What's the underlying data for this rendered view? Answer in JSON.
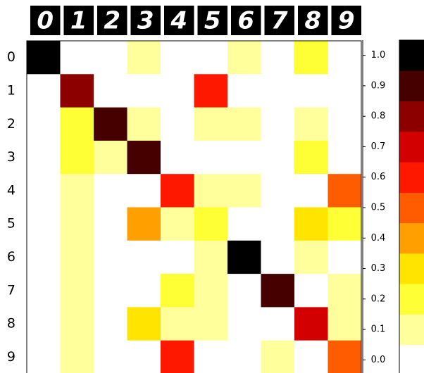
{
  "chart_data": {
    "type": "heatmap",
    "colormap": "hot_r",
    "x": [
      "0",
      "1",
      "2",
      "3",
      "4",
      "5",
      "6",
      "7",
      "8",
      "9"
    ],
    "y": [
      "0",
      "1",
      "2",
      "3",
      "4",
      "5",
      "6",
      "7",
      "8",
      "9"
    ],
    "values": [
      [
        1.0,
        0,
        0,
        0.05,
        0,
        0,
        0.05,
        0,
        0.15,
        0.02
      ],
      [
        0,
        0.75,
        0,
        0,
        0,
        0.6,
        0,
        0,
        0,
        0
      ],
      [
        0.03,
        0.15,
        0.85,
        0.05,
        0.03,
        0.1,
        0.08,
        0.04,
        0.07,
        0.02
      ],
      [
        0.02,
        0.15,
        0.08,
        0.85,
        0.03,
        0.03,
        0.02,
        0.03,
        0.2,
        0.02
      ],
      [
        0,
        0.05,
        0.02,
        0,
        0.6,
        0.05,
        0.07,
        0.02,
        0.03,
        0.45
      ],
      [
        0.03,
        0.05,
        0,
        0.4,
        0.1,
        0.15,
        0.03,
        0.02,
        0.25,
        0.2
      ],
      [
        0.02,
        0.1,
        0.04,
        0.02,
        0.02,
        0.05,
        0.98,
        0,
        0.05,
        0
      ],
      [
        0.02,
        0.07,
        0.02,
        0.02,
        0.15,
        0.08,
        0,
        0.9,
        0.02,
        0.12
      ],
      [
        0.03,
        0.1,
        0.03,
        0.25,
        0.06,
        0.06,
        0.04,
        0.04,
        0.7,
        0.1
      ],
      [
        0.03,
        0.06,
        0,
        0.03,
        0.55,
        0.03,
        0,
        0.07,
        0.02,
        0.45
      ]
    ],
    "clim": [
      -0.05,
      1.05
    ],
    "cticks": [
      {
        "value": 0,
        "label": "0.0"
      },
      {
        "value": 0.1,
        "label": "0.1"
      },
      {
        "value": 0.2,
        "label": "0.2"
      },
      {
        "value": 0.3,
        "label": "0.3"
      },
      {
        "value": 0.4,
        "label": "0.4"
      },
      {
        "value": 0.5,
        "label": "0.5"
      },
      {
        "value": 0.6,
        "label": "0.6"
      },
      {
        "value": 0.7,
        "label": "0.7"
      },
      {
        "value": 0.8,
        "label": "0.8"
      },
      {
        "value": 0.9,
        "label": "0.9"
      },
      {
        "value": 1,
        "label": "1.0"
      }
    ]
  }
}
